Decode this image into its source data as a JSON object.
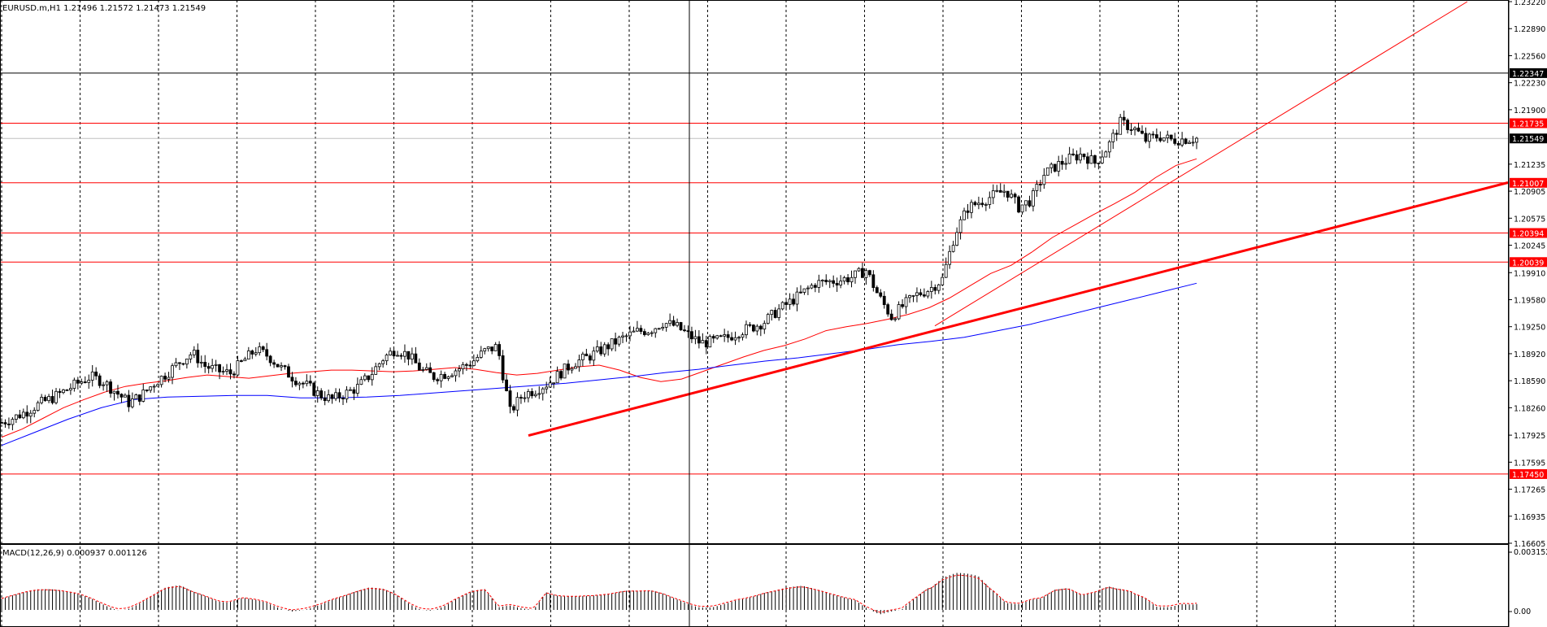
{
  "window": {
    "symbol_info": "EURUSD.m,H1  1.21496 1.21572 1.21473 1.21549"
  },
  "colors": {
    "background": "#ffffff",
    "grid": "#000000",
    "candle": "#000000",
    "ma_fast": "#ff0000",
    "ma_slow": "#0000ff",
    "hline": "#ff0000",
    "hline_label_bg": "#ff0000",
    "price_label_bg": "#000000",
    "trendline": "#ff0000",
    "macd_signal": "#ff0000",
    "macd_hist": "#000000"
  },
  "price_axis": {
    "ticks": [
      "1.23220",
      "1.22890",
      "1.22560",
      "1.22230",
      "1.21900",
      "1.21235",
      "1.20905",
      "1.20575",
      "1.20245",
      "1.19910",
      "1.19580",
      "1.19250",
      "1.18920",
      "1.18590",
      "1.18260",
      "1.17925",
      "1.17595",
      "1.17265",
      "1.16935",
      "1.16605"
    ],
    "ylim": [
      1.16605,
      1.2322
    ],
    "current_price": "1.21549",
    "crosshair_price": "1.22347"
  },
  "horizontal_levels": [
    {
      "label": "1.21735",
      "value": 1.21735
    },
    {
      "label": "1.21007",
      "value": 1.21007
    },
    {
      "label": "1.20394",
      "value": 1.20394
    },
    {
      "label": "1.20039",
      "value": 1.20039
    },
    {
      "label": "1.17450",
      "value": 1.1745
    }
  ],
  "indicator": {
    "label": "MACD(12,26,9) 0.000937 0.001126",
    "ticks": [
      "0.003152",
      "0.00"
    ],
    "ylim": [
      0.0,
      0.003152
    ]
  },
  "chart_data": {
    "type": "candlestick",
    "timeframe": "H1",
    "ylim": [
      1.16605,
      1.2322
    ],
    "close_series": [
      1.1808,
      1.1814,
      1.1822,
      1.1831,
      1.1838,
      1.1847,
      1.1856,
      1.1864,
      1.1858,
      1.1845,
      1.1832,
      1.1841,
      1.1856,
      1.1868,
      1.1882,
      1.1893,
      1.1877,
      1.1871,
      1.1868,
      1.1883,
      1.1897,
      1.1889,
      1.1874,
      1.1862,
      1.1853,
      1.1842,
      1.1836,
      1.1843,
      1.1851,
      1.1866,
      1.1886,
      1.1898,
      1.189,
      1.1872,
      1.1864,
      1.1868,
      1.1874,
      1.1882,
      1.1895,
      1.1901,
      1.1821,
      1.1842,
      1.1848,
      1.1856,
      1.1869,
      1.1881,
      1.1887,
      1.1895,
      1.1904,
      1.1912,
      1.1919,
      1.1921,
      1.193,
      1.1926,
      1.1915,
      1.1905,
      1.1907,
      1.1911,
      1.1919,
      1.1924,
      1.1931,
      1.1944,
      1.1955,
      1.1966,
      1.1978,
      1.198,
      1.1982,
      1.1986,
      1.1994,
      1.1962,
      1.1937,
      1.1952,
      1.1964,
      1.1971,
      1.1983,
      1.2039,
      1.207,
      1.2078,
      1.2085,
      1.2092,
      1.2071,
      1.208,
      1.2111,
      1.2122,
      1.213,
      1.2136,
      1.2125,
      1.2144,
      1.2174,
      1.2168,
      1.2153,
      1.2158,
      1.2153,
      1.2154,
      1.21549
    ],
    "ma_fast": [
      1.179,
      1.18,
      1.1813,
      1.1826,
      1.1836,
      1.1845,
      1.1852,
      1.1856,
      1.1859,
      1.1863,
      1.1866,
      1.1864,
      1.1862,
      1.1865,
      1.1868,
      1.187,
      1.1872,
      1.1872,
      1.1871,
      1.187,
      1.1871,
      1.1873,
      1.1875,
      1.1873,
      1.1869,
      1.1866,
      1.1868,
      1.1872,
      1.1876,
      1.1878,
      1.1872,
      1.1863,
      1.1858,
      1.1861,
      1.187,
      1.1879,
      1.1888,
      1.1896,
      1.1902,
      1.191,
      1.192,
      1.1925,
      1.1929,
      1.1934,
      1.194,
      1.1948,
      1.196,
      1.1975,
      1.199,
      1.2,
      1.2016,
      1.2034,
      1.2048,
      1.2062,
      1.2075,
      1.2089,
      1.2107,
      1.2122,
      1.213
    ],
    "ma_slow": [
      1.178,
      1.1796,
      1.1812,
      1.1826,
      1.1836,
      1.1839,
      1.184,
      1.1841,
      1.1841,
      1.1838,
      1.1838,
      1.1839,
      1.1841,
      1.1844,
      1.1847,
      1.185,
      1.1853,
      1.1856,
      1.186,
      1.1864,
      1.1869,
      1.1873,
      1.1878,
      1.1883,
      1.1887,
      1.1892,
      1.1897,
      1.1903,
      1.1907,
      1.1912,
      1.192,
      1.1928,
      1.1938,
      1.1948,
      1.1958,
      1.1968,
      1.1978
    ]
  }
}
